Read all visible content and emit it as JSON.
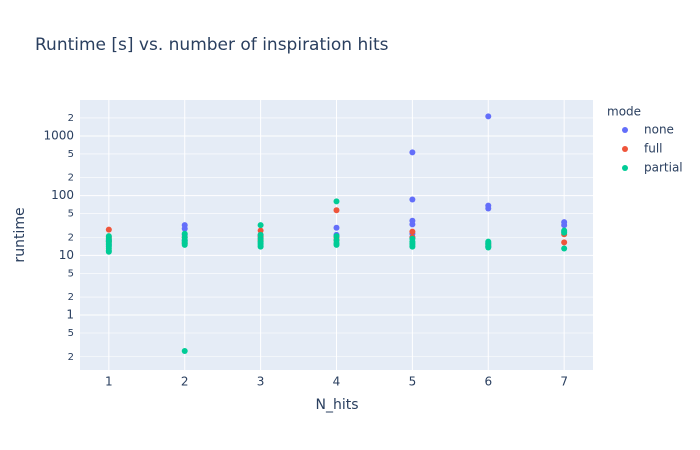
{
  "chart_data": {
    "type": "scatter",
    "title": "Runtime [s] vs. number of inspiration hits",
    "xlabel": "N_hits",
    "ylabel": "runtime",
    "legend_title": "mode",
    "legend": "right",
    "yscale": "log",
    "grid": true,
    "background": "#e5ecf6",
    "xlim": [
      0.62,
      7.38
    ],
    "xticks": [
      1,
      2,
      3,
      4,
      5,
      6,
      7
    ],
    "ylim": [
      0.12,
      4000
    ],
    "yticks": [
      {
        "value": 0.2,
        "label": "2"
      },
      {
        "value": 0.5,
        "label": "5"
      },
      1,
      {
        "value": 2,
        "label": "2"
      },
      {
        "value": 5,
        "label": "5"
      },
      10,
      {
        "value": 20,
        "label": "2"
      },
      {
        "value": 50,
        "label": "5"
      },
      100,
      {
        "value": 200,
        "label": "2"
      },
      {
        "value": 500,
        "label": "5"
      },
      1000,
      {
        "value": 2000,
        "label": "2"
      }
    ],
    "series": [
      {
        "name": "none",
        "color": "#636efa",
        "x": [
          1,
          1,
          2,
          2,
          2,
          2,
          3,
          3,
          4,
          4,
          5,
          5,
          5,
          5,
          5,
          5,
          6,
          6,
          6,
          6,
          6,
          7,
          7,
          7
        ],
        "values": [
          18,
          15,
          32,
          28,
          22,
          18,
          22,
          20,
          29,
          22,
          531,
          86,
          38,
          33,
          23,
          20,
          2130,
          68,
          61,
          16,
          14,
          36,
          32,
          25
        ]
      },
      {
        "name": "full",
        "color": "#ef553b",
        "x": [
          1,
          1,
          1,
          2,
          2,
          3,
          3,
          3,
          4,
          4,
          4,
          5,
          5,
          6,
          7,
          7
        ],
        "values": [
          27,
          20,
          17,
          20,
          16,
          26,
          21,
          18,
          57,
          20,
          18,
          25,
          20,
          15,
          22.5,
          16.5
        ]
      },
      {
        "name": "partial",
        "color": "#00cc96",
        "x": [
          1,
          1,
          1,
          1,
          1,
          1,
          1,
          1,
          1,
          1,
          2,
          2,
          2,
          2,
          2,
          2,
          2,
          3,
          3,
          3,
          3,
          3,
          3,
          3,
          4,
          4,
          4,
          4,
          4,
          5,
          5,
          5,
          5,
          5,
          6,
          6,
          6,
          6,
          6,
          7,
          7,
          7
        ],
        "values": [
          21,
          19,
          18,
          17,
          16,
          15,
          14,
          13,
          12,
          11.5,
          0.25,
          23,
          20,
          18,
          17,
          16,
          15,
          32,
          22,
          19,
          17,
          16,
          15,
          14,
          80,
          21,
          18,
          16,
          15,
          19,
          17,
          16,
          15,
          14,
          17,
          16,
          15,
          14,
          13.5,
          26,
          24,
          13
        ]
      }
    ]
  }
}
